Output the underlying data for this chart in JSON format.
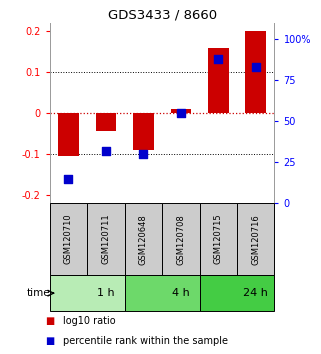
{
  "title": "GDS3433 / 8660",
  "samples": [
    "GSM120710",
    "GSM120711",
    "GSM120648",
    "GSM120708",
    "GSM120715",
    "GSM120716"
  ],
  "log10_ratio": [
    -0.105,
    -0.045,
    -0.09,
    0.01,
    0.16,
    0.2
  ],
  "percentile_rank": [
    15,
    32,
    30,
    55,
    88,
    83
  ],
  "time_groups": [
    {
      "label": "1 h",
      "start": 0,
      "end": 2,
      "color": "#b8ecb5"
    },
    {
      "label": "4 h",
      "start": 2,
      "end": 4,
      "color": "#6dd96a"
    },
    {
      "label": "24 h",
      "start": 4,
      "end": 6,
      "color": "#44cc44"
    }
  ],
  "ylim_left": [
    -0.22,
    0.22
  ],
  "ylim_right": [
    0,
    110
  ],
  "yticks_left": [
    -0.2,
    -0.1,
    0,
    0.1,
    0.2
  ],
  "yticks_right": [
    0,
    25,
    50,
    75,
    100
  ],
  "ytick_labels_right": [
    "0",
    "25",
    "50",
    "75",
    "100%"
  ],
  "bar_color": "#cc0000",
  "dot_color": "#0000cc",
  "bar_width": 0.55,
  "dot_size": 35,
  "zero_line_color": "#cc0000",
  "grid_color": "#000000",
  "sample_box_color": "#cccccc",
  "background_color": "#ffffff"
}
